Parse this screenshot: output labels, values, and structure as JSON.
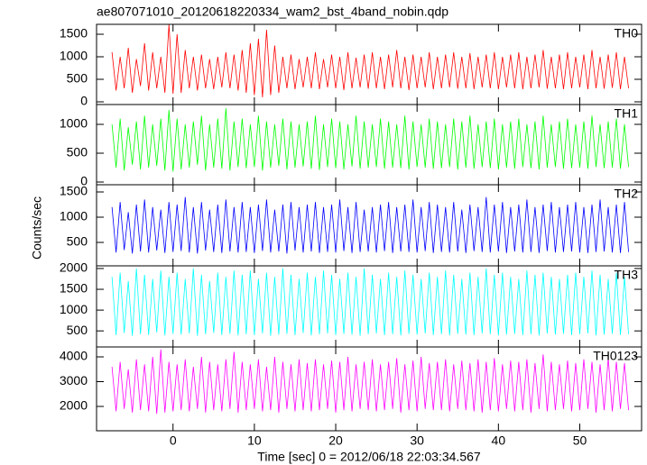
{
  "title": "ae807071010_20120618220334_wam2_bst_4band_nobin.qdp",
  "xlabel": "Time [sec] 0 = 2012/06/18 22:03:34.567",
  "ylabel": "Counts/sec",
  "xlim": [
    -9.4,
    57.6
  ],
  "xticks": [
    0,
    10,
    20,
    30,
    40,
    50
  ],
  "x": [
    -7.5,
    -7,
    -6.5,
    -6,
    -5.5,
    -5,
    -4.5,
    -4,
    -3.5,
    -3,
    -2.5,
    -2,
    -1.5,
    -1,
    -0.5,
    0,
    0.5,
    1,
    1.5,
    2,
    2.5,
    3,
    3.5,
    4,
    4.5,
    5,
    5.5,
    6,
    6.5,
    7,
    7.5,
    8,
    8.5,
    9,
    9.5,
    10,
    10.5,
    11,
    11.5,
    12,
    12.5,
    13,
    13.5,
    14,
    14.5,
    15,
    15.5,
    16,
    16.5,
    17,
    17.5,
    18,
    18.5,
    19,
    19.5,
    20,
    20.5,
    21,
    21.5,
    22,
    22.5,
    23,
    23.5,
    24,
    24.5,
    25,
    25.5,
    26,
    26.5,
    27,
    27.5,
    28,
    28.5,
    29,
    29.5,
    30,
    30.5,
    31,
    31.5,
    32,
    32.5,
    33,
    33.5,
    34,
    34.5,
    35,
    35.5,
    36,
    36.5,
    37,
    37.5,
    38,
    38.5,
    39,
    39.5,
    40,
    40.5,
    41,
    41.5,
    42,
    42.5,
    43,
    43.5,
    44,
    44.5,
    45,
    45.5,
    46,
    46.5,
    47,
    47.5,
    48,
    48.5,
    49,
    49.5,
    50,
    50.5,
    51,
    51.5,
    52,
    52.5,
    53,
    53.5,
    54,
    54.5,
    55,
    55.5,
    56
  ],
  "chart_data": [
    {
      "type": "line",
      "label": "TH0",
      "ylim": [
        -60,
        1720
      ],
      "yticks": [
        0,
        500,
        1000,
        1500
      ],
      "series": [
        {
          "color": "#ff0000",
          "values": [
            1100,
            250,
            1000,
            300,
            1200,
            200,
            950,
            350,
            1300,
            250,
            1100,
            300,
            1000,
            200,
            1720,
            180,
            1500,
            200,
            1150,
            300,
            1000,
            250,
            1050,
            300,
            950,
            280,
            1000,
            320,
            1100,
            300,
            1050,
            250,
            1150,
            200,
            1300,
            150,
            1400,
            100,
            1600,
            150,
            1250,
            200,
            1000,
            300,
            1050,
            280,
            950,
            320,
            1000,
            300,
            1100,
            280,
            950,
            320,
            1050,
            300,
            1000,
            260,
            1100,
            300,
            980,
            320,
            1050,
            290,
            1100,
            300,
            1000,
            280,
            1050,
            320,
            1150,
            300,
            1000,
            260,
            1050,
            300,
            1000,
            320,
            1100,
            280,
            1000,
            300,
            1050,
            320,
            1100,
            290,
            1000,
            300,
            1080,
            280,
            1000,
            320,
            1050,
            300,
            1100,
            280,
            1000,
            320,
            1050,
            300,
            1100,
            280,
            1000,
            300,
            1050,
            320,
            1150,
            290,
            1000,
            300,
            1050,
            280,
            1100,
            300,
            1000,
            320,
            1050,
            280,
            1150,
            300,
            1000,
            290,
            1050,
            310,
            1100,
            280,
            1000,
            300
          ]
        }
      ]
    },
    {
      "type": "line",
      "label": "TH1",
      "ylim": [
        -47,
        1344
      ],
      "yticks": [
        0,
        500,
        1000
      ],
      "series": [
        {
          "color": "#00ff00",
          "values": [
            1000,
            250,
            1100,
            200,
            950,
            300,
            1050,
            220,
            1150,
            250,
            1000,
            280,
            1100,
            200,
            1250,
            180,
            1100,
            220,
            1000,
            250,
            1050,
            300,
            1150,
            200,
            1000,
            250,
            1100,
            230,
            1280,
            200,
            1050,
            260,
            1100,
            240,
            1000,
            260,
            1150,
            200,
            1050,
            250,
            1000,
            280,
            1100,
            220,
            1050,
            250,
            1000,
            270,
            1050,
            230,
            1150,
            210,
            1000,
            260,
            1100,
            240,
            1050,
            220,
            1000,
            270,
            1150,
            230,
            1050,
            250,
            1000,
            260,
            1100,
            230,
            1050,
            250,
            1000,
            240,
            1150,
            220,
            1050,
            260,
            1000,
            250,
            1100,
            230,
            1050,
            240,
            1000,
            260,
            1100,
            220,
            1050,
            250,
            1150,
            230,
            1000,
            260,
            1050,
            240,
            1100,
            220,
            1000,
            250,
            1050,
            230,
            1100,
            260,
            1000,
            240,
            1050,
            220,
            1150,
            250,
            1000,
            260,
            1050,
            230,
            1100,
            240,
            1000,
            250,
            1050,
            230,
            1150,
            260,
            1000,
            240,
            1050,
            250,
            1100,
            230,
            1000,
            260
          ]
        }
      ]
    },
    {
      "type": "line",
      "label": "TH2",
      "ylim": [
        36,
        1643
      ],
      "yticks": [
        500,
        1000,
        1500
      ],
      "series": [
        {
          "color": "#0000ff",
          "values": [
            1200,
            300,
            1300,
            350,
            1100,
            280,
            1250,
            320,
            1350,
            300,
            1200,
            340,
            1150,
            290,
            1300,
            310,
            1250,
            330,
            1400,
            300,
            1200,
            280,
            1300,
            340,
            1150,
            310,
            1250,
            290,
            1350,
            320,
            1200,
            300,
            1300,
            310,
            1200,
            290,
            1250,
            330,
            1350,
            300,
            1150,
            320,
            1250,
            280,
            1300,
            340,
            1200,
            300,
            1250,
            320,
            1300,
            290,
            1200,
            310,
            1250,
            300,
            1350,
            330,
            1200,
            290,
            1300,
            310,
            1150,
            320,
            1200,
            300,
            1250,
            330,
            1300,
            290,
            1200,
            320,
            1250,
            310,
            1350,
            300,
            1200,
            330,
            1300,
            290,
            1250,
            310,
            1200,
            300,
            1300,
            320,
            1150,
            290,
            1250,
            330,
            1200,
            310,
            1400,
            300,
            1250,
            320,
            1300,
            290,
            1200,
            320,
            1250,
            300,
            1350,
            310,
            1200,
            290,
            1250,
            330,
            1300,
            300,
            1200,
            310,
            1250,
            320,
            1300,
            300,
            1200,
            290,
            1250,
            310,
            1350,
            320,
            1200,
            300,
            1250,
            290,
            1300,
            310
          ]
        }
      ]
    },
    {
      "type": "line",
      "label": "TH3",
      "ylim": [
        114,
        2064
      ],
      "yticks": [
        500,
        1000,
        1500,
        2000
      ],
      "series": [
        {
          "color": "#00ffff",
          "values": [
            1800,
            400,
            1900,
            450,
            1700,
            380,
            2000,
            420,
            1850,
            400,
            1750,
            460,
            1950,
            390,
            1800,
            430,
            1900,
            410,
            1750,
            440,
            2000,
            380,
            1850,
            420,
            1700,
            450,
            1900,
            400,
            1800,
            430,
            1950,
            390,
            1850,
            420,
            1950,
            400,
            1750,
            440,
            1900,
            380,
            1800,
            410,
            2000,
            430,
            1850,
            400,
            1750,
            450,
            1900,
            390,
            1800,
            420,
            1950,
            440,
            1850,
            400,
            1750,
            430,
            1900,
            410,
            1800,
            380,
            2000,
            420,
            1850,
            440,
            1750,
            400,
            1900,
            420,
            1800,
            390,
            1950,
            430,
            1850,
            410,
            1750,
            440,
            1900,
            400,
            1800,
            420,
            1950,
            390,
            1850,
            430,
            1750,
            410,
            1900,
            400,
            1800,
            440,
            2000,
            420,
            1850,
            390,
            1900,
            410,
            1800,
            430,
            1750,
            400,
            1950,
            420,
            1850,
            390,
            1900,
            440,
            1800,
            410,
            1750,
            430,
            1850,
            400,
            1900,
            420,
            1800,
            440,
            1950,
            390,
            1850,
            410,
            1750,
            430,
            1900,
            400,
            1800,
            420
          ]
        }
      ]
    },
    {
      "type": "line",
      "label": "TH0123",
      "ylim": [
        1018,
        4400
      ],
      "yticks": [
        2000,
        3000,
        4000
      ],
      "series": [
        {
          "color": "#ff00ff",
          "values": [
            3600,
            1800,
            3800,
            1900,
            3500,
            1750,
            3900,
            1850,
            3700,
            1800,
            4000,
            1700,
            4300,
            1750,
            3800,
            1800,
            3700,
            1850,
            3900,
            1800,
            3600,
            1900,
            4000,
            1750,
            3800,
            1850,
            3700,
            1800,
            3900,
            1900,
            4200,
            1750,
            3800,
            1850,
            3700,
            1900,
            3900,
            1800,
            3600,
            1850,
            4000,
            1750,
            3800,
            1900,
            3700,
            1800,
            3900,
            1850,
            3750,
            1800,
            3900,
            1850,
            3700,
            1900,
            3850,
            1750,
            3800,
            1850,
            4000,
            1800,
            3700,
            1900,
            3800,
            1850,
            3900,
            1800,
            3700,
            1850,
            3800,
            1900,
            3950,
            1750,
            3700,
            1850,
            3850,
            1800,
            4000,
            1900,
            3750,
            1850,
            3800,
            1850,
            3900,
            1800,
            3700,
            1900,
            3850,
            1850,
            3750,
            1800,
            3900,
            1750,
            3800,
            1850,
            3950,
            1800,
            3700,
            1900,
            3850,
            1800,
            3800,
            1850,
            3900,
            1750,
            3750,
            1900,
            4100,
            1800,
            3800,
            1850,
            3700,
            1900,
            3850,
            1800,
            3750,
            1850,
            3900,
            1900,
            3800,
            1750,
            3700,
            1850,
            3950,
            1800,
            3800,
            1900,
            3750,
            1850
          ]
        }
      ]
    }
  ]
}
